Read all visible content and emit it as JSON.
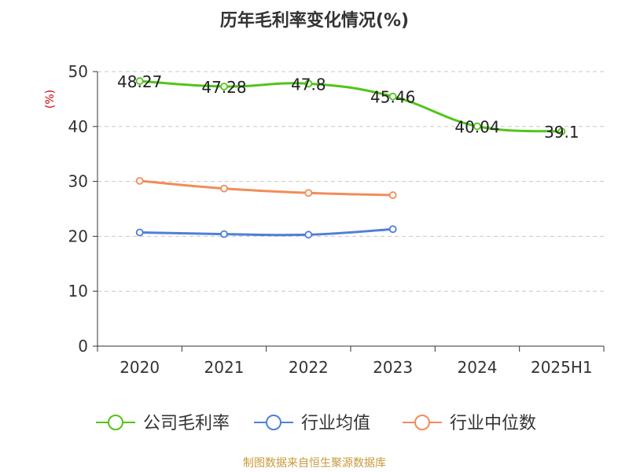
{
  "chart_data": {
    "type": "line",
    "title": "历年毛利率变化情况(%)",
    "ylabel": "(%)",
    "categories": [
      "2020",
      "2021",
      "2022",
      "2023",
      "2024",
      "2025H1"
    ],
    "ylim": [
      0,
      50
    ],
    "yticks": [
      0,
      10,
      20,
      30,
      40,
      50
    ],
    "grid": true,
    "legend_position": "bottom",
    "series": [
      {
        "name": "公司毛利率",
        "color": "#52c41a",
        "values": [
          48.27,
          47.28,
          47.8,
          45.46,
          40.04,
          39.1
        ],
        "labels": [
          "48.27",
          "47.28",
          "47.8",
          "45.46",
          "40.04",
          "39.1"
        ]
      },
      {
        "name": "行业均值",
        "color": "#4f7fd9",
        "values": [
          20.7,
          20.4,
          20.3,
          21.3,
          null,
          null
        ]
      },
      {
        "name": "行业中位数",
        "color": "#f28c5a",
        "values": [
          30.1,
          28.7,
          27.9,
          27.5,
          null,
          null
        ]
      }
    ]
  },
  "source": "制图数据来自恒生聚源数据库"
}
